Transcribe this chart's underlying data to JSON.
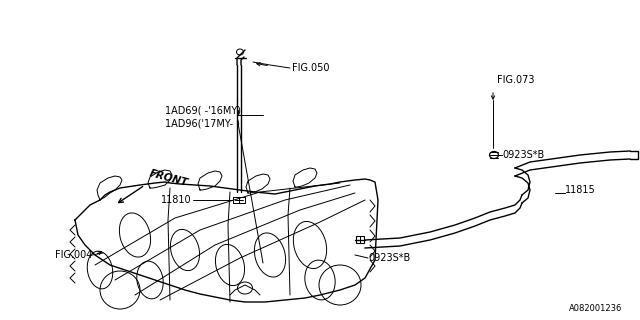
{
  "bg_color": "#ffffff",
  "line_color": "#000000",
  "label_fig050": "FIG.050",
  "label_fig073": "FIG.073",
  "label_fig004": "FIG.004",
  "label_front": "FRONT",
  "label_11810": "11810",
  "label_11815": "11815",
  "label_clip": "0923S*B",
  "label_iad1": "1AD69( -’16MY)",
  "label_iad2": "1AD96(’17MY- )",
  "diagram_label": "A082001236"
}
